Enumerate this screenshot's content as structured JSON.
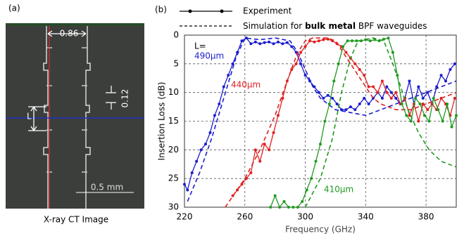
{
  "panel_a": {
    "label": "(a)",
    "caption": "X-ray CT Image",
    "dim_width": "0.86",
    "dim_gap": "0.12",
    "dim_length": "L",
    "scale_bar": "0.5 mm"
  },
  "chart_data": {
    "type": "line",
    "panel_label": "(b)",
    "xlabel": "Frequency (GHz)",
    "ylabel": "Insertion Loss (dB)",
    "xlim": [
      220,
      400
    ],
    "ylim": [
      0,
      30
    ],
    "y_inverted": true,
    "xticks": [
      220,
      260,
      300,
      340,
      380
    ],
    "yticks": [
      0,
      5,
      10,
      15,
      20,
      25,
      30
    ],
    "grid": true,
    "legend": [
      {
        "label": "Experiment",
        "style": "solid"
      },
      {
        "label_parts": [
          "Simulation for ",
          "bulk metal",
          " BPF waveguides"
        ],
        "style": "dashed"
      }
    ],
    "annotations": [
      {
        "text": "L=",
        "color": "#000000"
      },
      {
        "text": "490µm",
        "color": "#1c1cd0"
      },
      {
        "text": "440µm",
        "color": "#e02020"
      },
      {
        "text": "410µm",
        "color": "#1f9a1f"
      }
    ],
    "series": [
      {
        "color": "#1c1cd0",
        "style": "solid",
        "x": [
          220,
          222,
          225,
          228,
          231,
          234,
          237,
          240,
          243,
          246,
          249,
          252,
          255,
          258,
          261,
          264,
          267,
          270,
          273,
          276,
          279,
          282,
          285,
          288,
          291,
          294,
          297,
          300,
          303,
          306,
          309,
          312,
          315,
          318,
          321,
          324,
          327,
          330,
          333,
          336,
          339,
          342,
          345,
          348,
          351,
          354,
          357,
          360,
          363,
          366,
          369,
          372,
          375,
          378,
          381,
          384,
          387,
          390,
          393,
          396,
          399
        ],
        "values": [
          26,
          27,
          24,
          22,
          20,
          19,
          17,
          14,
          12,
          9,
          7,
          5,
          3,
          1,
          0.5,
          1.5,
          1.2,
          1.5,
          1.3,
          1.2,
          1.5,
          1.2,
          1.5,
          1.3,
          2,
          3,
          5,
          7,
          8,
          9,
          10,
          11,
          10.5,
          11,
          12,
          13,
          13,
          12.5,
          13,
          12,
          11,
          12,
          11,
          10,
          11,
          9,
          10,
          11,
          12,
          11,
          8,
          12,
          9,
          11,
          10,
          12,
          9,
          7,
          8,
          6,
          5
        ]
      },
      {
        "color": "#1c1cd0",
        "style": "dashed",
        "x": [
          222,
          230,
          238,
          246,
          254,
          260,
          270,
          280,
          290,
          295,
          300,
          305,
          310,
          320,
          330,
          340,
          350,
          360,
          370,
          380,
          390,
          400
        ],
        "values": [
          29,
          24,
          18,
          11,
          4,
          0.5,
          0.8,
          0.5,
          1,
          3,
          6,
          9,
          11,
          13,
          13.5,
          14,
          13,
          12,
          11,
          10,
          9,
          8
        ]
      },
      {
        "color": "#e02020",
        "style": "solid",
        "x": [
          252,
          255,
          258,
          261,
          264,
          267,
          270,
          273,
          276,
          279,
          282,
          285,
          288,
          291,
          294,
          297,
          300,
          303,
          306,
          309,
          312,
          315,
          318,
          321,
          324,
          327,
          330,
          333,
          336,
          339,
          342,
          345,
          348,
          351,
          354,
          357,
          360,
          363,
          366,
          369,
          372,
          375,
          378,
          381,
          384,
          387,
          390,
          393,
          396,
          399
        ],
        "values": [
          28,
          27,
          26,
          25,
          24,
          20,
          22,
          19,
          20,
          17,
          14,
          11,
          8,
          6,
          5,
          3,
          2,
          1,
          1.2,
          1,
          0.8,
          0.7,
          1,
          1.5,
          2,
          3,
          4,
          5,
          6,
          7,
          9,
          9,
          10,
          8,
          10,
          11,
          10,
          12,
          11,
          14,
          12,
          15,
          12,
          13,
          12,
          13,
          11,
          12,
          14,
          11
        ]
      },
      {
        "color": "#e02020",
        "style": "dashed",
        "x": [
          247,
          260,
          270,
          280,
          288,
          295,
          300,
          305,
          315,
          320,
          325,
          330,
          335,
          340,
          345,
          350,
          360,
          370,
          380,
          390,
          400
        ],
        "values": [
          30,
          25,
          20,
          14,
          8,
          3,
          1,
          0.5,
          0.5,
          1,
          3,
          5,
          7,
          9,
          11,
          12,
          13,
          13,
          12,
          11,
          10
        ]
      },
      {
        "color": "#1f9a1f",
        "style": "solid",
        "x": [
          277,
          280,
          283,
          286,
          289,
          292,
          295,
          298,
          301,
          304,
          307,
          310,
          313,
          316,
          319,
          322,
          325,
          328,
          331,
          334,
          337,
          340,
          343,
          346,
          349,
          352,
          355,
          358,
          361,
          364,
          367,
          370,
          373,
          376,
          379,
          382,
          385,
          388,
          391,
          394,
          397,
          400
        ],
        "values": [
          30,
          28,
          30,
          29,
          30,
          30,
          30,
          29,
          27,
          25,
          22,
          19,
          15,
          12,
          8,
          5,
          2,
          1,
          1,
          1,
          1,
          0.8,
          1,
          0.8,
          1,
          0.7,
          0.5,
          3,
          7,
          12,
          14,
          15,
          11,
          12,
          14,
          15,
          11,
          13,
          15,
          12,
          16,
          14
        ]
      },
      {
        "color": "#1f9a1f",
        "style": "dashed",
        "x": [
          300,
          310,
          318,
          324,
          330,
          335,
          345,
          352,
          358,
          362,
          368,
          375,
          382,
          390,
          400
        ],
        "values": [
          30,
          25,
          18,
          10,
          4,
          1,
          0.5,
          1,
          5,
          8,
          13,
          17,
          20,
          22,
          23
        ]
      }
    ]
  }
}
